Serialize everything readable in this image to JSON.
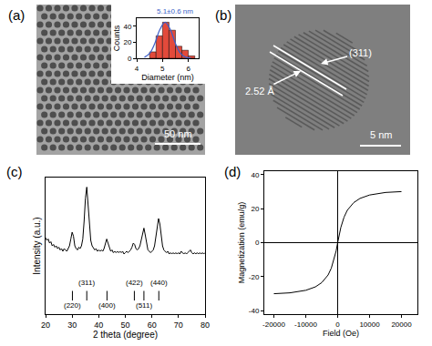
{
  "images": [
    {
      "label": "(a)",
      "scale_bar": "50 nm"
    },
    {
      "label": "(b)",
      "scale_bar": "5 nm",
      "spacing_label": "2.52 Å",
      "plane_label": "(311)"
    }
  ],
  "chart_data": [
    {
      "type": "histogram",
      "x_label": "Diameter (nm)",
      "y_label": "Counts",
      "annotations": [
        "5.1±0.6 nm"
      ],
      "bins": [
        4.5,
        4.75,
        5.0,
        5.25,
        5.5,
        5.75,
        6.0,
        6.25
      ],
      "values": [
        8,
        28,
        45,
        35,
        15,
        10,
        3
      ],
      "color": "#e24a3b",
      "fit": {
        "type": "line",
        "color": "#3d5fc9",
        "x": [
          4.3,
          4.5,
          4.7,
          4.9,
          5.1,
          5.3,
          5.5,
          5.7,
          5.9,
          6.1
        ],
        "values": [
          1.3,
          6,
          18.5,
          36,
          45,
          36,
          18.5,
          6,
          1.3,
          0.2
        ]
      },
      "xlim": [
        4,
        6.4
      ],
      "xticks": [
        4,
        5,
        6
      ],
      "ylim": [
        0,
        50
      ],
      "yticks": [
        0,
        20,
        40
      ],
      "grid": false
    },
    {
      "type": "line",
      "panel_label": "(c)",
      "x_label": "2 theta (degree)",
      "y_label": "Intensity (a.u.)",
      "color": "#000000",
      "x": [
        20,
        20.5,
        21,
        21.5,
        22,
        22.5,
        23,
        23.5,
        24,
        24.5,
        25,
        25.5,
        26,
        26.5,
        27,
        27.5,
        28,
        28.5,
        29,
        29.5,
        30,
        30.5,
        31,
        31.5,
        32,
        32.5,
        33,
        33.5,
        34,
        34.5,
        35,
        35.5,
        36,
        36.5,
        37,
        37.5,
        38,
        38.5,
        39,
        39.5,
        40,
        40.5,
        41,
        41.5,
        42,
        42.5,
        43,
        43.5,
        44,
        44.5,
        45,
        45.5,
        46,
        46.5,
        47,
        47.5,
        48,
        48.5,
        49,
        49.5,
        50,
        50.5,
        51,
        51.5,
        52,
        52.5,
        53,
        53.5,
        54,
        54.5,
        55,
        55.5,
        56,
        56.5,
        57,
        57.5,
        58,
        58.5,
        59,
        59.5,
        60,
        60.5,
        61,
        61.5,
        62,
        62.5,
        63,
        63.5,
        64,
        64.5,
        65,
        65.5,
        66,
        66.5,
        67,
        67.5,
        68,
        68.5,
        69,
        69.5,
        70,
        70.5,
        71,
        71.5,
        72,
        72.5,
        73,
        73.5,
        74,
        74.5,
        75,
        75.5,
        76,
        76.5,
        77,
        77.5,
        78,
        78.5,
        79,
        79.5,
        80
      ],
      "values": [
        56,
        54,
        55,
        52,
        53,
        50,
        51,
        49,
        50,
        48,
        49,
        47,
        48,
        46,
        48,
        47,
        46,
        48,
        50,
        55,
        60,
        57,
        50,
        48,
        47,
        49,
        48,
        50,
        55,
        68,
        85,
        93,
        80,
        62,
        54,
        50,
        48,
        47,
        48,
        46,
        47,
        46,
        47,
        46,
        48,
        51,
        55,
        52,
        48,
        46,
        47,
        45,
        46,
        45,
        46,
        45,
        46,
        45,
        46,
        44,
        45,
        46,
        45,
        46,
        47,
        49,
        52,
        51,
        48,
        47,
        48,
        50,
        55,
        60,
        63,
        58,
        51,
        47,
        46,
        45,
        46,
        47,
        50,
        56,
        64,
        70,
        66,
        57,
        50,
        47,
        46,
        45,
        46,
        44,
        45,
        44,
        45,
        44,
        45,
        44,
        45,
        44,
        46,
        45,
        44,
        45,
        44,
        45,
        46,
        47,
        45,
        44,
        45,
        44,
        45,
        44,
        45,
        44,
        45,
        44,
        45
      ],
      "reference_lines": [
        {
          "x": 30.1,
          "label": "(220)"
        },
        {
          "x": 35.5,
          "label": "(311)"
        },
        {
          "x": 43.1,
          "label": "(400)"
        },
        {
          "x": 53.4,
          "label": "(422)"
        },
        {
          "x": 57.0,
          "label": "(511)"
        },
        {
          "x": 62.6,
          "label": "(440)"
        }
      ],
      "xlim": [
        20,
        80
      ],
      "xticks": [
        20,
        30,
        40,
        50,
        60,
        70,
        80
      ],
      "ylim": [
        0,
        100
      ],
      "tick_labels": "x",
      "grid": false
    },
    {
      "type": "line",
      "panel_label": "(d)",
      "x_label": "Field (Oe)",
      "y_label": "Magnetization (emu/g)",
      "color": "#000000",
      "x": [
        -20000,
        -15000,
        -10000,
        -7000,
        -5000,
        -3000,
        -2000,
        -1000,
        -500,
        0,
        500,
        1000,
        2000,
        3000,
        5000,
        7000,
        10000,
        15000,
        20000
      ],
      "values": [
        -30,
        -29.5,
        -28,
        -26,
        -23.5,
        -19,
        -15,
        -9,
        -5,
        0,
        5,
        9,
        15,
        19,
        23.5,
        26,
        28,
        29.5,
        30
      ],
      "xlim": [
        -23000,
        25000
      ],
      "xticks": [
        -20000,
        -10000,
        0,
        10000,
        20000
      ],
      "ylim": [
        -42,
        42
      ],
      "yticks": [
        -40,
        -20,
        0,
        20,
        40
      ],
      "grid": false
    }
  ]
}
